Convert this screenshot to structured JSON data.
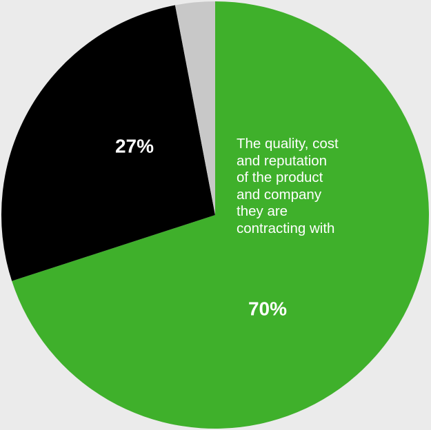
{
  "chart_data": {
    "type": "pie",
    "slices": [
      {
        "value": 70,
        "label": "70%",
        "color": "#3fb02b"
      },
      {
        "value": 27,
        "label": "27%",
        "color": "#000000"
      },
      {
        "value": 3,
        "label": "",
        "color": "#c8c8c8"
      }
    ],
    "start_angle": "top, clockwise",
    "annotation": "The quality, cost\nand reputation\nof the product\nand company\nthey are\ncontracting with"
  },
  "colors": {
    "background": "#ebebeb",
    "label_text": "#ffffff"
  }
}
